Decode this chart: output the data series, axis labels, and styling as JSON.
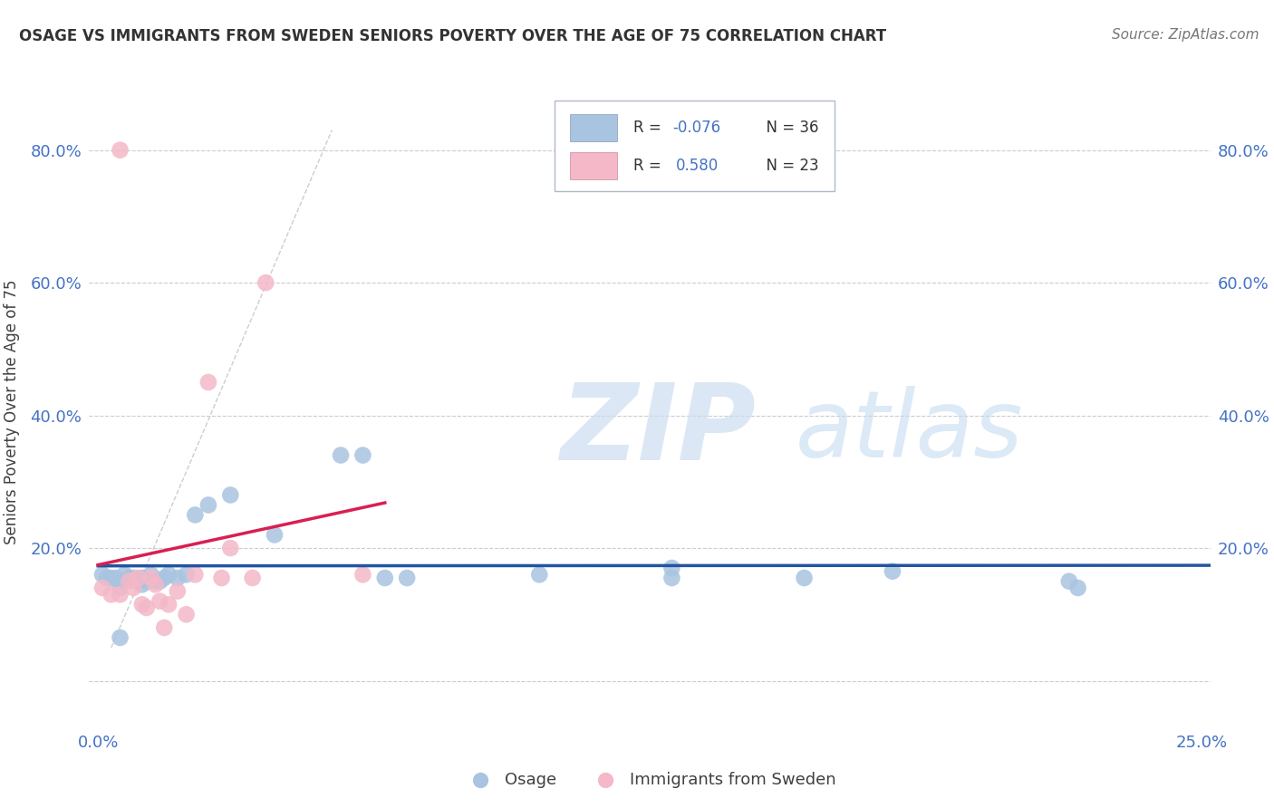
{
  "title": "OSAGE VS IMMIGRANTS FROM SWEDEN SENIORS POVERTY OVER THE AGE OF 75 CORRELATION CHART",
  "source": "Source: ZipAtlas.com",
  "ylabel": "Seniors Poverty Over the Age of 75",
  "xlim": [
    -0.002,
    0.252
  ],
  "ylim": [
    -0.07,
    0.88
  ],
  "ytick_vals": [
    0.0,
    0.2,
    0.4,
    0.6,
    0.8
  ],
  "ytick_labels": [
    "",
    "20.0%",
    "40.0%",
    "60.0%",
    "80.0%"
  ],
  "xtick_vals": [
    0.0,
    0.25
  ],
  "xtick_labels": [
    "0.0%",
    "25.0%"
  ],
  "blue_scatter_color": "#a8c4e0",
  "pink_scatter_color": "#f4b8c8",
  "blue_line_color": "#2255a0",
  "pink_line_color": "#d82050",
  "tick_color": "#4472c4",
  "osage_x": [
    0.001,
    0.002,
    0.003,
    0.004,
    0.005,
    0.005,
    0.006,
    0.007,
    0.008,
    0.009,
    0.01,
    0.01,
    0.011,
    0.012,
    0.013,
    0.014,
    0.015,
    0.016,
    0.018,
    0.02,
    0.022,
    0.025,
    0.03,
    0.04,
    0.055,
    0.06,
    0.065,
    0.07,
    0.1,
    0.13,
    0.16,
    0.18,
    0.22,
    0.222,
    0.005,
    0.13
  ],
  "osage_y": [
    0.16,
    0.155,
    0.155,
    0.155,
    0.15,
    0.14,
    0.16,
    0.155,
    0.155,
    0.15,
    0.155,
    0.145,
    0.15,
    0.16,
    0.15,
    0.15,
    0.155,
    0.16,
    0.155,
    0.16,
    0.25,
    0.265,
    0.28,
    0.22,
    0.34,
    0.34,
    0.155,
    0.155,
    0.16,
    0.155,
    0.155,
    0.165,
    0.15,
    0.14,
    0.065,
    0.17
  ],
  "sweden_x": [
    0.001,
    0.003,
    0.005,
    0.007,
    0.008,
    0.009,
    0.01,
    0.011,
    0.012,
    0.013,
    0.014,
    0.015,
    0.016,
    0.018,
    0.02,
    0.022,
    0.025,
    0.028,
    0.03,
    0.035,
    0.038,
    0.06,
    0.005
  ],
  "sweden_y": [
    0.14,
    0.13,
    0.13,
    0.15,
    0.14,
    0.155,
    0.115,
    0.11,
    0.155,
    0.145,
    0.12,
    0.08,
    0.115,
    0.135,
    0.1,
    0.16,
    0.45,
    0.155,
    0.2,
    0.155,
    0.6,
    0.16,
    0.8
  ],
  "watermark_zip": "ZIP",
  "watermark_atlas": "atlas"
}
